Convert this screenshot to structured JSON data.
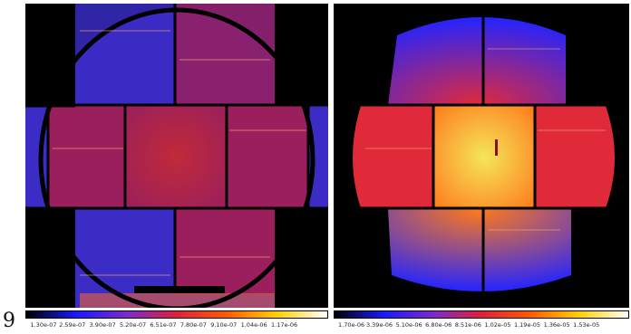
{
  "figure_label": "9",
  "images": [
    {
      "id": "left",
      "colorbar": {
        "ticks": [
          "1.30e-07",
          "2.59e-07",
          "3.90e-07",
          "5.20e-07",
          "6.51e-07",
          "7.80e-07",
          "9.10e-07",
          "1.04e-06",
          "1.17e-06"
        ],
        "colors": [
          "#000000",
          "#1a1aff",
          "#7a2ad0",
          "#e0203a",
          "#ff5a00",
          "#ffd000",
          "#ffffff"
        ]
      },
      "colors": {
        "background": "#000000",
        "chip_outer": "#3a2cc4",
        "chip_inner": "#9a1f5c",
        "center": "#c12a3a",
        "hot": "#ff6a2a"
      }
    },
    {
      "id": "right",
      "colorbar": {
        "ticks": [
          "1.70e-06",
          "3.39e-06",
          "5.10e-06",
          "6.80e-06",
          "8.51e-06",
          "1.02e-05",
          "1.19e-05",
          "1.36e-05",
          "1.53e-05"
        ],
        "colors": [
          "#000000",
          "#1a1aff",
          "#7a2ad0",
          "#e0203a",
          "#ff5a00",
          "#ffd000",
          "#ffffff"
        ]
      },
      "colors": {
        "background": "#000000",
        "chip_outer": "#2424ff",
        "chip_warm": "#e02a3a",
        "center": "#f4e65a",
        "hot": "#ff7a1a"
      }
    }
  ]
}
